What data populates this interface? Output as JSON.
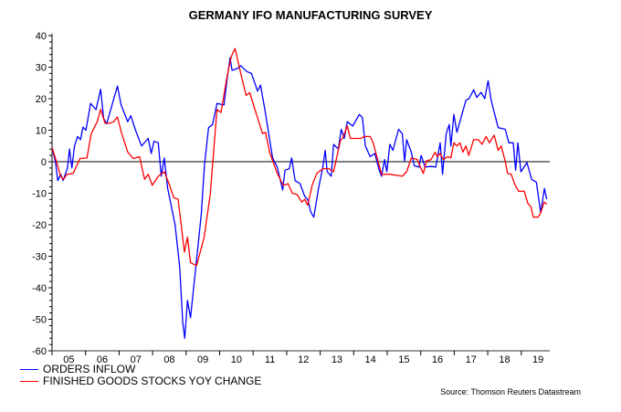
{
  "chart_data": {
    "type": "line",
    "title": "GERMANY IFO MANUFACTURING SURVEY",
    "source": "Source: Thomson Reuters Datastream",
    "ylim": [
      -60,
      40
    ],
    "yticks": [
      40,
      30,
      20,
      10,
      0,
      -10,
      -20,
      -30,
      -40,
      -50,
      -60
    ],
    "xlim": [
      2005,
      2019.85
    ],
    "xtick_labels": [
      "05",
      "06",
      "07",
      "08",
      "09",
      "10",
      "11",
      "12",
      "13",
      "14",
      "15",
      "16",
      "17",
      "18",
      "19"
    ],
    "zero_line": true,
    "grid": false,
    "legend_placement": "bottom-left",
    "series": [
      {
        "name": "ORDERS INFLOW",
        "color": "#0000ff",
        "points": [
          [
            2005.0,
            4.5
          ],
          [
            2005.1,
            0
          ],
          [
            2005.17,
            -6
          ],
          [
            2005.26,
            -4
          ],
          [
            2005.33,
            -6
          ],
          [
            2005.46,
            -2
          ],
          [
            2005.52,
            4
          ],
          [
            2005.59,
            -2
          ],
          [
            2005.67,
            5
          ],
          [
            2005.76,
            8
          ],
          [
            2005.85,
            7
          ],
          [
            2005.92,
            11
          ],
          [
            2006.01,
            10
          ],
          [
            2006.15,
            18.5
          ],
          [
            2006.31,
            16.5
          ],
          [
            2006.45,
            23
          ],
          [
            2006.54,
            13.7
          ],
          [
            2006.63,
            12
          ],
          [
            2006.95,
            24
          ],
          [
            2007.06,
            18
          ],
          [
            2007.26,
            12.7
          ],
          [
            2007.35,
            14.6
          ],
          [
            2007.49,
            10
          ],
          [
            2007.67,
            5
          ],
          [
            2007.87,
            7.4
          ],
          [
            2007.96,
            2.6
          ],
          [
            2008.04,
            6.5
          ],
          [
            2008.17,
            6
          ],
          [
            2008.26,
            -4.6
          ],
          [
            2008.35,
            1.2
          ],
          [
            2008.45,
            -8.5
          ],
          [
            2008.67,
            -20
          ],
          [
            2008.81,
            -33.5
          ],
          [
            2008.9,
            -51
          ],
          [
            2008.96,
            -56
          ],
          [
            2009.04,
            -44
          ],
          [
            2009.13,
            -49.5
          ],
          [
            2009.26,
            -36.5
          ],
          [
            2009.45,
            -17
          ],
          [
            2009.55,
            -0.8
          ],
          [
            2009.67,
            10.8
          ],
          [
            2009.79,
            11.8
          ],
          [
            2009.92,
            18.5
          ],
          [
            2010.13,
            18
          ],
          [
            2010.22,
            26
          ],
          [
            2010.31,
            33
          ],
          [
            2010.37,
            29
          ],
          [
            2010.54,
            29.6
          ],
          [
            2010.63,
            30.5
          ],
          [
            2010.81,
            28.6
          ],
          [
            2010.95,
            28
          ],
          [
            2011.13,
            22.4
          ],
          [
            2011.22,
            24.3
          ],
          [
            2011.35,
            16.6
          ],
          [
            2011.58,
            1.2
          ],
          [
            2011.72,
            -1.7
          ],
          [
            2011.88,
            -9
          ],
          [
            2011.95,
            -2.7
          ],
          [
            2012.08,
            -2.2
          ],
          [
            2012.15,
            1.2
          ],
          [
            2012.25,
            -6
          ],
          [
            2012.4,
            -7
          ],
          [
            2012.54,
            -11
          ],
          [
            2012.63,
            -12
          ],
          [
            2012.72,
            -16
          ],
          [
            2012.81,
            -17.6
          ],
          [
            2012.95,
            -8.5
          ],
          [
            2013.08,
            -1.7
          ],
          [
            2013.15,
            3.6
          ],
          [
            2013.21,
            -3.2
          ],
          [
            2013.33,
            -4.6
          ],
          [
            2013.4,
            5.5
          ],
          [
            2013.54,
            4
          ],
          [
            2013.63,
            10.3
          ],
          [
            2013.72,
            7.4
          ],
          [
            2013.81,
            12.7
          ],
          [
            2013.97,
            11.3
          ],
          [
            2014.17,
            15
          ],
          [
            2014.26,
            14
          ],
          [
            2014.35,
            5
          ],
          [
            2014.49,
            1.6
          ],
          [
            2014.63,
            2.6
          ],
          [
            2014.76,
            -2.7
          ],
          [
            2014.83,
            -4.6
          ],
          [
            2014.92,
            0.7
          ],
          [
            2014.99,
            -3.2
          ],
          [
            2015.08,
            5.5
          ],
          [
            2015.17,
            3.6
          ],
          [
            2015.34,
            10.3
          ],
          [
            2015.45,
            8.9
          ],
          [
            2015.52,
            0.2
          ],
          [
            2015.58,
            7
          ],
          [
            2015.72,
            3
          ],
          [
            2015.81,
            -1.3
          ],
          [
            2015.95,
            -1.7
          ],
          [
            2016.01,
            2
          ],
          [
            2016.13,
            -1.7
          ],
          [
            2016.31,
            -1.5
          ],
          [
            2016.45,
            -1.7
          ],
          [
            2016.58,
            6
          ],
          [
            2016.65,
            -4
          ],
          [
            2016.76,
            8.9
          ],
          [
            2016.85,
            11.8
          ],
          [
            2016.9,
            5
          ],
          [
            2016.99,
            15
          ],
          [
            2017.08,
            9.3
          ],
          [
            2017.35,
            19.5
          ],
          [
            2017.44,
            20
          ],
          [
            2017.58,
            22.8
          ],
          [
            2017.67,
            20.4
          ],
          [
            2017.8,
            22
          ],
          [
            2017.91,
            20
          ],
          [
            2018.01,
            25.7
          ],
          [
            2018.1,
            19.5
          ],
          [
            2018.31,
            10.8
          ],
          [
            2018.52,
            10.3
          ],
          [
            2018.63,
            6
          ],
          [
            2018.76,
            6
          ],
          [
            2018.83,
            -2.7
          ],
          [
            2018.9,
            6
          ],
          [
            2018.99,
            -3.2
          ],
          [
            2019.17,
            -0.3
          ],
          [
            2019.31,
            -5.6
          ],
          [
            2019.45,
            -6.5
          ],
          [
            2019.58,
            -16.2
          ],
          [
            2019.69,
            -8.5
          ],
          [
            2019.76,
            -11.9
          ]
        ]
      },
      {
        "name": "FINISHED GOODS STOCKS YOY CHANGE",
        "color": "#ff0000",
        "points": [
          [
            2005.0,
            4.5
          ],
          [
            2005.13,
            0
          ],
          [
            2005.26,
            -4.6
          ],
          [
            2005.34,
            -5.6
          ],
          [
            2005.45,
            -4
          ],
          [
            2005.63,
            -3.7
          ],
          [
            2005.83,
            1
          ],
          [
            2006.04,
            1.2
          ],
          [
            2006.17,
            8.9
          ],
          [
            2006.35,
            12.7
          ],
          [
            2006.45,
            16.6
          ],
          [
            2006.58,
            12.2
          ],
          [
            2006.72,
            12.2
          ],
          [
            2006.84,
            12.7
          ],
          [
            2006.95,
            14.2
          ],
          [
            2007.08,
            8.9
          ],
          [
            2007.26,
            3
          ],
          [
            2007.43,
            1
          ],
          [
            2007.61,
            1.6
          ],
          [
            2007.76,
            -5.6
          ],
          [
            2007.87,
            -4
          ],
          [
            2007.99,
            -7.5
          ],
          [
            2008.17,
            -4.6
          ],
          [
            2008.35,
            -3.2
          ],
          [
            2008.49,
            -7
          ],
          [
            2008.63,
            -11.4
          ],
          [
            2008.76,
            -11.9
          ],
          [
            2008.95,
            -28.7
          ],
          [
            2009.04,
            -23.9
          ],
          [
            2009.13,
            -32
          ],
          [
            2009.31,
            -33
          ],
          [
            2009.54,
            -23.9
          ],
          [
            2009.72,
            -10.4
          ],
          [
            2009.92,
            16.6
          ],
          [
            2010.04,
            15.6
          ],
          [
            2010.22,
            27
          ],
          [
            2010.35,
            33.4
          ],
          [
            2010.46,
            35.9
          ],
          [
            2010.63,
            28
          ],
          [
            2010.79,
            21
          ],
          [
            2010.9,
            21.9
          ],
          [
            2011.04,
            17
          ],
          [
            2011.17,
            12.7
          ],
          [
            2011.28,
            8.9
          ],
          [
            2011.37,
            9.3
          ],
          [
            2011.49,
            3
          ],
          [
            2011.72,
            -3.7
          ],
          [
            2011.9,
            -7.5
          ],
          [
            2012.04,
            -7
          ],
          [
            2012.17,
            -10
          ],
          [
            2012.31,
            -10.4
          ],
          [
            2012.45,
            -12.8
          ],
          [
            2012.54,
            -11.9
          ],
          [
            2012.63,
            -13.8
          ],
          [
            2012.76,
            -7.5
          ],
          [
            2012.9,
            -3.7
          ],
          [
            2013.08,
            -2.2
          ],
          [
            2013.26,
            -2.2
          ],
          [
            2013.4,
            -3.2
          ],
          [
            2013.61,
            7
          ],
          [
            2013.67,
            7.4
          ],
          [
            2013.81,
            11.3
          ],
          [
            2013.9,
            7.4
          ],
          [
            2014.22,
            7.4
          ],
          [
            2014.31,
            8
          ],
          [
            2014.49,
            8
          ],
          [
            2014.58,
            6
          ],
          [
            2014.83,
            -4
          ],
          [
            2015.08,
            -4
          ],
          [
            2015.45,
            -4.6
          ],
          [
            2015.58,
            -3.2
          ],
          [
            2015.72,
            1.2
          ],
          [
            2015.9,
            0.7
          ],
          [
            2015.99,
            -1.7
          ],
          [
            2016.08,
            -3.7
          ],
          [
            2016.17,
            0.2
          ],
          [
            2016.31,
            0.7
          ],
          [
            2016.43,
            3
          ],
          [
            2016.49,
            1.6
          ],
          [
            2016.58,
            2.6
          ],
          [
            2016.67,
            0.7
          ],
          [
            2016.81,
            1.6
          ],
          [
            2016.9,
            1.2
          ],
          [
            2016.99,
            6
          ],
          [
            2017.08,
            5
          ],
          [
            2017.17,
            6
          ],
          [
            2017.26,
            3
          ],
          [
            2017.35,
            5
          ],
          [
            2017.43,
            2
          ],
          [
            2017.58,
            7
          ],
          [
            2017.72,
            7
          ],
          [
            2017.83,
            5.5
          ],
          [
            2017.95,
            8
          ],
          [
            2018.05,
            6
          ],
          [
            2018.19,
            8.4
          ],
          [
            2018.31,
            3.6
          ],
          [
            2018.4,
            5
          ],
          [
            2018.52,
            0.2
          ],
          [
            2018.59,
            -3.7
          ],
          [
            2018.7,
            -4
          ],
          [
            2018.82,
            -7.5
          ],
          [
            2018.92,
            -9.4
          ],
          [
            2019.09,
            -9.4
          ],
          [
            2019.2,
            -13.3
          ],
          [
            2019.29,
            -14.3
          ],
          [
            2019.36,
            -17.6
          ],
          [
            2019.5,
            -17.6
          ],
          [
            2019.58,
            -16.2
          ],
          [
            2019.68,
            -12.8
          ],
          [
            2019.76,
            -13.5
          ]
        ]
      }
    ]
  }
}
